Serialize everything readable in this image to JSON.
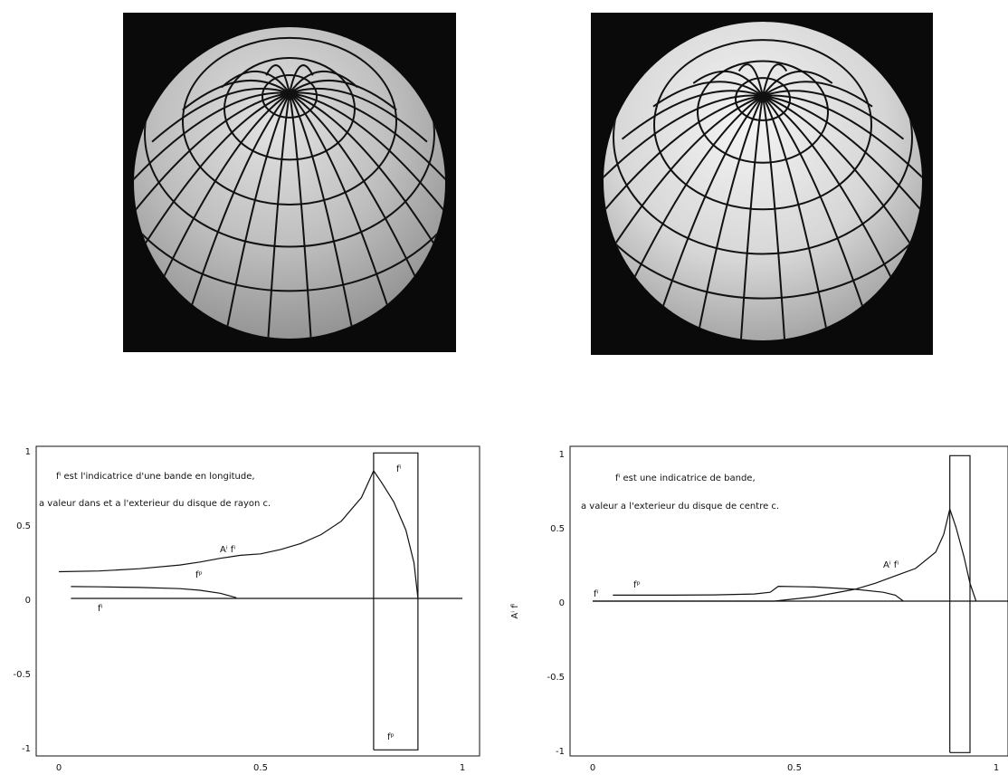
{
  "top_left": {},
  "top_right": {},
  "chart_data": [
    {
      "type": "line",
      "xlim": [
        0,
        1
      ],
      "ylim": [
        -1,
        1
      ],
      "x_ticks": [
        "0",
        "0.5",
        "1"
      ],
      "y_ticks": [
        "1",
        "0.5",
        "0",
        "-0.5",
        "-1"
      ],
      "annotation_line1": "fⁱ est l'indicatrice d'une bande en longitude,",
      "annotation_line2": "a valeur dans et a l'exterieur du disque de rayon c.",
      "box_label_top": "fⁱ",
      "box_label_bottom": "fᵖ",
      "curve_labels": {
        "Afi": "Aⁱ fⁱ",
        "fp": "fᵖ",
        "fi": "fⁱ"
      },
      "series": [
        {
          "x": [
            0,
            0.1,
            0.2,
            0.3,
            0.35,
            0.4,
            0.45,
            0.5,
            0.55,
            0.6,
            0.65,
            0.7,
            0.75,
            0.78
          ],
          "values": [
            0.18,
            0.185,
            0.2,
            0.225,
            0.245,
            0.27,
            0.29,
            0.3,
            0.33,
            0.37,
            0.43,
            0.52,
            0.68,
            0.86
          ]
        },
        {
          "x": [
            0.78,
            0.8,
            0.83,
            0.86,
            0.88,
            0.89
          ],
          "values": [
            0.86,
            0.78,
            0.65,
            0.46,
            0.24,
            0
          ]
        },
        {
          "x": [
            0.03,
            0.1,
            0.2,
            0.3,
            0.35,
            0.4,
            0.44
          ],
          "values": [
            0.08,
            0.078,
            0.074,
            0.066,
            0.055,
            0.035,
            0.005
          ]
        },
        {
          "x": [
            0.03,
            0.44,
            0.6,
            0.78,
            0.89,
            1.0
          ],
          "values": [
            0,
            0,
            0,
            0,
            0,
            0
          ]
        },
        {
          "x": [
            0.78,
            0.78,
            0.89,
            0.89,
            0.78
          ],
          "values": [
            -1.02,
            0.98,
            0.98,
            -1.02,
            -1.02
          ]
        }
      ]
    },
    {
      "type": "line",
      "xlim": [
        0,
        1
      ],
      "ylim": [
        -1,
        1
      ],
      "x_ticks": [
        "0",
        "0.5",
        "1"
      ],
      "y_ticks": [
        "1",
        "0.5",
        "0",
        "-0.5",
        "-1"
      ],
      "ylabel": "Aⁱ fⁱ",
      "annotation_line1": "fⁱ est une indicatrice de bande,",
      "annotation_line2": "a valeur a l'exterieur du disque de centre c.",
      "curve_labels": {
        "Afi": "Aⁱ fⁱ",
        "fp": "fᵖ",
        "fi": "fⁱ"
      },
      "series": [
        {
          "x": [
            0,
            0.45,
            0.55,
            0.65,
            0.7,
            0.75,
            0.8,
            0.85,
            0.87,
            0.885
          ],
          "values": [
            0,
            0,
            0.03,
            0.08,
            0.12,
            0.17,
            0.22,
            0.33,
            0.45,
            0.62
          ]
        },
        {
          "x": [
            0.885,
            0.9,
            0.92,
            0.935,
            0.95
          ],
          "values": [
            0.62,
            0.5,
            0.3,
            0.12,
            0
          ]
        },
        {
          "x": [
            0.05,
            0.2,
            0.3,
            0.4,
            0.44,
            0.46,
            0.55,
            0.65,
            0.72,
            0.75,
            0.77
          ],
          "values": [
            0.04,
            0.04,
            0.042,
            0.048,
            0.06,
            0.1,
            0.095,
            0.08,
            0.06,
            0.04,
            0
          ]
        },
        {
          "x": [
            0,
            0.3,
            0.6,
            0.88,
            0.95,
            1.05
          ],
          "values": [
            0,
            0,
            0,
            0,
            0,
            0
          ]
        },
        {
          "x": [
            0.885,
            0.885,
            0.935,
            0.935,
            0.885
          ],
          "values": [
            -1.02,
            0.98,
            0.98,
            -1.02,
            -1.02
          ]
        }
      ]
    }
  ]
}
